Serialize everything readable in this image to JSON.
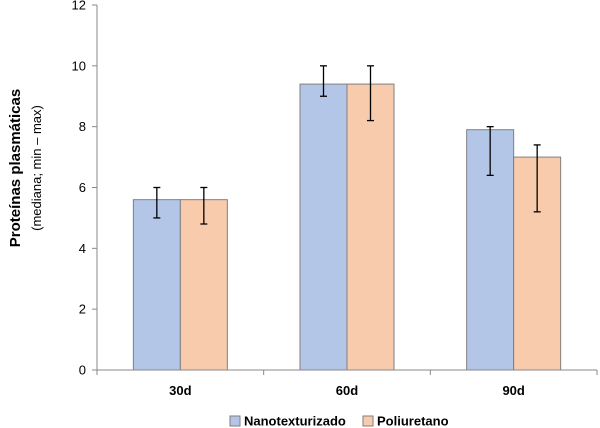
{
  "chart_data": {
    "type": "bar",
    "categories": [
      "30d",
      "60d",
      "90d"
    ],
    "series": [
      {
        "name": "Nanotexturizado",
        "color": "#b4c6e7",
        "values": [
          5.6,
          9.4,
          7.9
        ],
        "err_low": [
          5.0,
          9.0,
          6.4
        ],
        "err_high": [
          6.0,
          10.0,
          8.0
        ]
      },
      {
        "name": "Poliuretano",
        "color": "#f9cbad",
        "values": [
          5.6,
          9.4,
          7.0
        ],
        "err_low": [
          4.8,
          8.2,
          5.2
        ],
        "err_high": [
          6.0,
          10.0,
          7.4
        ]
      }
    ],
    "ylabel_line1": "Proteínas plasmáticas",
    "ylabel_line2": "(mediana; min – max)",
    "xlabel": "",
    "title": "",
    "ylim": [
      0,
      12
    ],
    "yticks": [
      "0",
      "2",
      "4",
      "6",
      "8",
      "10",
      "12"
    ],
    "grid": false,
    "legend_position": "bottom"
  }
}
